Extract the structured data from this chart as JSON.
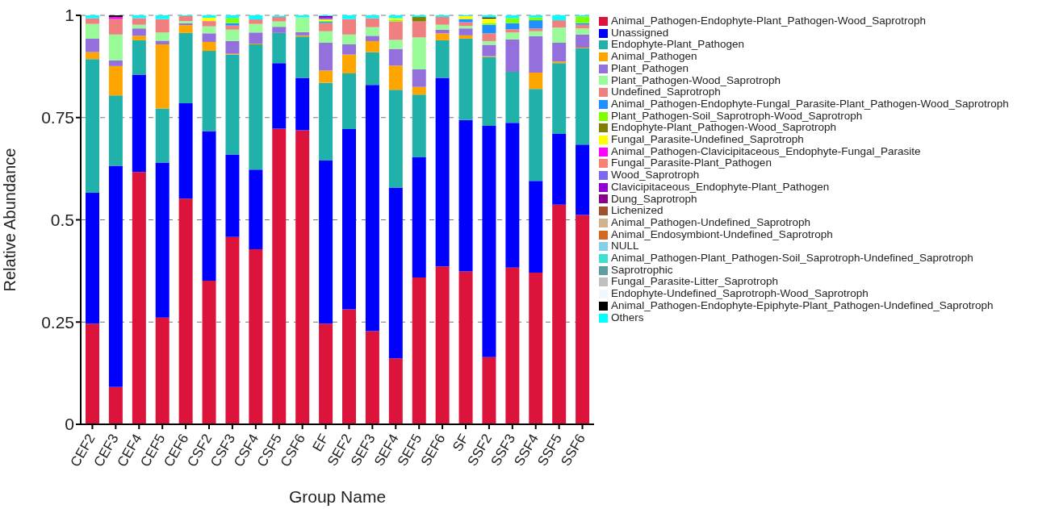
{
  "chart_data": {
    "type": "bar",
    "stacked": true,
    "xlabel": "Group Name",
    "ylabel": "Relative Abundance",
    "ylim": [
      0,
      1
    ],
    "yticks": [
      0,
      {
        "value": 0.25,
        "label": "0.25"
      },
      {
        "value": 0.5,
        "label": "0.5"
      },
      {
        "value": 0.75,
        "label": "0.75"
      },
      1
    ],
    "grid": "y",
    "legend": "right",
    "categories": [
      "CEF2",
      "CEF3",
      "CEF4",
      "CEF5",
      "CEF6",
      "CSF2",
      "CSF3",
      "CSF4",
      "CSF5",
      "CSF6",
      "EF",
      "SEF2",
      "SEF3",
      "SEF4",
      "SEF5",
      "SEF6",
      "SF",
      "SSF2",
      "SSF3",
      "SSF4",
      "SSF5",
      "SSF6"
    ],
    "series": [
      {
        "name": "Animal_Pathogen-Endophyte-Plant_Pathogen-Wood_Saprotroph",
        "color": "#dc143c",
        "values": [
          0.246,
          0.091,
          0.617,
          0.261,
          0.552,
          0.351,
          0.458,
          0.428,
          0.723,
          0.719,
          0.246,
          0.281,
          0.228,
          0.161,
          0.359,
          0.386,
          0.374,
          0.164,
          0.383,
          0.371,
          0.537,
          0.512
        ]
      },
      {
        "name": "Unassigned",
        "color": "#0000ff",
        "values": [
          0.32,
          0.541,
          0.238,
          0.379,
          0.233,
          0.366,
          0.202,
          0.195,
          0.16,
          0.128,
          0.399,
          0.441,
          0.602,
          0.418,
          0.294,
          0.461,
          0.37,
          0.566,
          0.354,
          0.224,
          0.173,
          0.172
        ]
      },
      {
        "name": "Endophyte-Plant_Pathogen",
        "color": "#20b2aa",
        "values": [
          0.327,
          0.172,
          0.084,
          0.132,
          0.172,
          0.196,
          0.244,
          0.306,
          0.074,
          0.101,
          0.19,
          0.136,
          0.08,
          0.239,
          0.153,
          0.092,
          0.199,
          0.168,
          0.125,
          0.225,
          0.173,
          0.235
        ]
      },
      {
        "name": "Animal_Pathogen",
        "color": "#ffa500",
        "values": [
          0.017,
          0.072,
          0.011,
          0.157,
          0.019,
          0.022,
          0.002,
          0.002,
          null,
          0.003,
          0.03,
          0.046,
          0.027,
          0.059,
          0.019,
          0.017,
          0.008,
          0.002,
          0,
          0.04,
          0.004,
          0.002
        ]
      },
      {
        "name": "Plant_Pathogen",
        "color": "#9370db",
        "values": [
          0.033,
          0.014,
          0.018,
          0.009,
          0.005,
          0.021,
          0.031,
          0.027,
          0.015,
          0.008,
          0.068,
          0.025,
          0.013,
          0.041,
          0.043,
          0.009,
          0.017,
          0.028,
          0.079,
          0.089,
          0.046,
          0.032
        ]
      },
      {
        "name": "Plant_Pathogen-Wood_Saprotroph",
        "color": "#98fb98",
        "values": [
          0.036,
          0.063,
          0.009,
          0.02,
          0.005,
          0.017,
          0.028,
          0.021,
          0.013,
          0.036,
          0.028,
          0.024,
          0.021,
          0.022,
          0.078,
          0.012,
          0.006,
          0.009,
          0.017,
          0.012,
          0.037,
          0.015
        ]
      },
      {
        "name": "Undefined_Saprotroph",
        "color": "#f08080",
        "values": [
          0.014,
          0.038,
          0.016,
          0.033,
          0.012,
          0.013,
          0.01,
          0.011,
          0.011,
          0,
          0.02,
          0.038,
          0.022,
          0.045,
          0.039,
          0.019,
          0.009,
          0.019,
          0.008,
          0.007,
          0.018,
          0.009
        ]
      },
      {
        "name": "Animal_Pathogen-Endophyte-Fungal_Parasite-Plant_Pathogen-Wood_Saprotroph",
        "color": "#1e90ff",
        "values": [
          0,
          0,
          0,
          0,
          0,
          0,
          0.006,
          0,
          0,
          0,
          0.003,
          0,
          0,
          0,
          0,
          0,
          0.008,
          0.021,
          0.015,
          0.02,
          0,
          0.004
        ]
      },
      {
        "name": "Plant_Pathogen-Soil_Saprotroph-Wood_Saprotroph",
        "color": "#7fff00",
        "values": [
          0,
          0,
          0,
          0,
          0,
          0,
          0.012,
          0,
          0,
          0,
          0.003,
          0,
          0,
          0.004,
          0,
          0,
          0,
          0.004,
          0.012,
          0.007,
          0,
          0.016
        ]
      },
      {
        "name": "Endophyte-Plant_Pathogen-Wood_Saprotroph",
        "color": "#808000",
        "values": [
          0,
          0,
          0,
          0,
          0,
          0,
          0,
          0,
          0,
          0,
          0,
          0,
          0,
          0,
          0.011,
          0,
          0,
          0,
          0,
          0,
          0,
          0
        ]
      },
      {
        "name": "Fungal_Parasite-Undefined_Saprotroph",
        "color": "#ffff00",
        "values": [
          0,
          0,
          0,
          0,
          0,
          0.008,
          0,
          0,
          0,
          0,
          0.003,
          0,
          0,
          0.004,
          0,
          0,
          0.007,
          0.011,
          0,
          0,
          0,
          0
        ]
      },
      {
        "name": "Animal_Pathogen-Clavicipitaceous_Endophyte-Fungal_Parasite",
        "color": "#ff00ff",
        "values": [
          0,
          0.005,
          0,
          0,
          0,
          0,
          0,
          0,
          0,
          0,
          0,
          0,
          0,
          0,
          0,
          0,
          0,
          0,
          0,
          0,
          0,
          0
        ]
      },
      {
        "name": "Fungal_Parasite-Plant_Pathogen",
        "color": "#fa8072",
        "values": [
          0,
          0,
          0,
          0,
          0,
          0,
          0,
          0,
          0,
          0,
          0,
          0,
          0,
          0,
          0,
          0,
          0,
          0,
          0,
          0,
          0,
          0
        ]
      },
      {
        "name": "Wood_Saprotroph",
        "color": "#7b68ee",
        "values": [
          0,
          0,
          0,
          0,
          0,
          0,
          0,
          0,
          0,
          0,
          0.003,
          0,
          0,
          0,
          0,
          0,
          0,
          0,
          0,
          0,
          0,
          0
        ]
      },
      {
        "name": "Clavicipitaceous_Endophyte-Plant_Pathogen",
        "color": "#9400d3",
        "values": [
          0,
          0,
          0,
          0,
          0,
          0,
          0,
          0,
          0,
          0,
          0.003,
          0,
          0,
          0,
          0,
          0,
          0,
          0,
          0,
          0,
          0,
          0
        ]
      },
      {
        "name": "Dung_Saprotroph",
        "color": "#8b008b",
        "values": [
          0,
          0,
          0,
          0,
          0,
          0,
          0,
          0,
          0,
          0,
          0.002,
          0,
          0,
          0,
          0,
          0,
          0,
          0,
          0,
          0,
          0,
          0
        ]
      },
      {
        "name": "Lichenized",
        "color": "#a0522d",
        "values": [
          0,
          0,
          0,
          0,
          0,
          0,
          0,
          0,
          0,
          0,
          0,
          0,
          0,
          0,
          0,
          0,
          0,
          0,
          0,
          0,
          0,
          0
        ]
      },
      {
        "name": "Animal_Pathogen-Undefined_Saprotroph",
        "color": "#d2b48c",
        "values": [
          0,
          0,
          0,
          0,
          0,
          0,
          0,
          0,
          0,
          0,
          0,
          0,
          0,
          0,
          0,
          0,
          0,
          0,
          0,
          0,
          0,
          0
        ]
      },
      {
        "name": "Animal_Endosymbiont-Undefined_Saprotroph",
        "color": "#d2691e",
        "values": [
          0,
          0,
          0,
          0,
          0,
          0,
          0,
          0,
          0,
          0,
          0,
          0,
          0,
          0,
          0,
          0,
          0,
          0,
          0,
          0,
          0,
          0
        ]
      },
      {
        "name": "NULL",
        "color": "#87ceeb",
        "values": [
          0,
          0,
          0,
          0,
          0,
          0,
          0,
          0,
          0,
          0,
          0,
          0,
          0,
          0,
          0,
          0,
          0,
          0,
          0,
          0,
          0,
          0
        ]
      },
      {
        "name": "Animal_Pathogen-Plant_Pathogen-Soil_Saprotroph-Undefined_Saprotroph",
        "color": "#40e0d0",
        "values": [
          0,
          0,
          0,
          0,
          0,
          0,
          0,
          0,
          0,
          0,
          0,
          0,
          0,
          0,
          0,
          0,
          0,
          0,
          0,
          0,
          0,
          0
        ]
      },
      {
        "name": "Saprotrophic",
        "color": "#5f9ea0",
        "values": [
          0,
          0,
          0,
          0,
          0,
          0,
          0,
          0,
          0,
          0,
          0,
          0,
          0,
          0,
          0,
          0,
          0,
          0,
          0,
          0,
          0,
          0
        ]
      },
      {
        "name": "Fungal_Parasite-Litter_Saprotroph",
        "color": "#c0c0c0",
        "values": [
          0,
          0,
          0,
          0,
          0,
          0,
          0,
          0,
          0,
          0,
          0,
          0,
          0,
          0,
          0,
          0,
          0,
          0,
          0,
          0,
          0,
          0
        ]
      },
      {
        "name": "Endophyte-Undefined_Saprotroph-Wood_Saprotroph",
        "color": "#f0f8ff",
        "values": [
          0,
          0,
          0,
          0,
          0,
          0,
          0,
          0,
          0,
          0,
          0,
          0,
          0,
          0,
          0,
          0,
          0,
          0,
          0,
          0,
          0,
          0
        ]
      },
      {
        "name": "Animal_Pathogen-Endophyte-Epiphyte-Plant_Pathogen-Undefined_Saprotroph",
        "color": "#000000",
        "values": [
          0,
          0.004,
          0,
          0,
          0,
          0,
          0,
          0,
          0,
          0,
          0,
          0,
          0,
          0,
          0,
          0,
          0,
          0.003,
          0,
          0,
          0,
          0
        ]
      },
      {
        "name": "Others",
        "color": "#00ffff",
        "values": [
          0.007,
          0,
          0.007,
          0.009,
          0.002,
          0.006,
          0.007,
          0.01,
          0.003,
          0.005,
          0.002,
          0.009,
          0.007,
          0.007,
          0.004,
          0.004,
          0.002,
          0.005,
          0.007,
          0.005,
          0.012,
          0.003
        ]
      }
    ]
  }
}
